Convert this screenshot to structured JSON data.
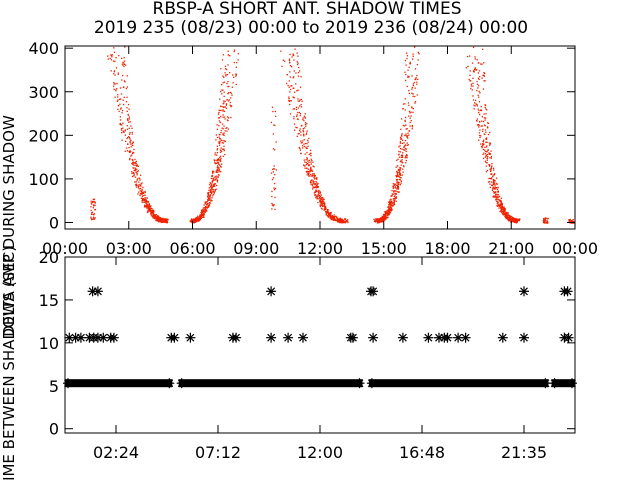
{
  "header": {
    "title": "RBSP-A SHORT ANT. SHADOW TIMES",
    "subtitle": "2019 235 (08/23) 00:00 to 2019 236 (08/24) 00:00"
  },
  "colors": {
    "top_points": "#ee2200",
    "axes": "#000000",
    "bottom_points": "#000000"
  },
  "chart_data": [
    {
      "type": "scatter",
      "ylabel": "DELTA AMP DURING SHADOW",
      "xlim_hours": [
        0,
        24
      ],
      "ylim": [
        -15,
        405
      ],
      "x_ticks": [
        "00:00",
        "03:00",
        "06:00",
        "09:00",
        "12:00",
        "15:00",
        "18:00",
        "21:00",
        "00:00"
      ],
      "y_ticks": [
        "0",
        "100",
        "200",
        "300",
        "400"
      ],
      "grid": false,
      "marker": "dot",
      "series": [
        {
          "name": "",
          "arcs": [
            {
              "start_h": 2.35,
              "end_h": 4.8,
              "y_start": 400,
              "y_end": 5
            },
            {
              "start_h": 5.9,
              "end_h": 7.8,
              "y_start": 5,
              "y_end": 400
            },
            {
              "start_h": 10.5,
              "end_h": 13.2,
              "y_start": 400,
              "y_end": 5
            },
            {
              "start_h": 14.6,
              "end_h": 16.4,
              "y_start": 5,
              "y_end": 400
            },
            {
              "start_h": 19.2,
              "end_h": 21.3,
              "y_start": 400,
              "y_end": 5
            }
          ],
          "clusters": [
            {
              "x_h": 1.3,
              "y_low": 8,
              "y_high": 55
            },
            {
              "x_h": 9.8,
              "y_low": 30,
              "y_high": 280
            },
            {
              "x_h": 22.6,
              "y_low": 0,
              "y_high": 12
            },
            {
              "x_h": 23.8,
              "y_low": 0,
              "y_high": 10
            }
          ]
        }
      ]
    },
    {
      "type": "scatter",
      "ylabel": "TIME BETWEEN SHADOWS (SEC)",
      "xlim_hours": [
        0,
        24
      ],
      "ylim": [
        -0.5,
        20
      ],
      "x_ticks": [
        "02:24",
        "07:12",
        "12:00",
        "16:48",
        "21:35"
      ],
      "y_ticks": [
        "0",
        "5",
        "10",
        "15",
        "20"
      ],
      "grid": false,
      "marker": "asterisk",
      "series": [
        {
          "name": "",
          "baseline_value": 5.3,
          "baseline_segments_h": [
            [
              0,
              5.05
            ],
            [
              5.35,
              14.0
            ],
            [
              14.3,
              22.75
            ],
            [
              22.9,
              24
            ]
          ],
          "points": [
            {
              "x_h": 0.2,
              "y": 10.6
            },
            {
              "x_h": 0.5,
              "y": 10.6
            },
            {
              "x_h": 0.75,
              "y": 10.6
            },
            {
              "x_h": 1.15,
              "y": 10.6
            },
            {
              "x_h": 1.35,
              "y": 10.6
            },
            {
              "x_h": 1.55,
              "y": 10.6
            },
            {
              "x_h": 1.8,
              "y": 10.6
            },
            {
              "x_h": 2.15,
              "y": 10.6
            },
            {
              "x_h": 2.3,
              "y": 10.6
            },
            {
              "x_h": 1.3,
              "y": 16.0
            },
            {
              "x_h": 1.55,
              "y": 16.0
            },
            {
              "x_h": 5.0,
              "y": 10.6
            },
            {
              "x_h": 5.15,
              "y": 10.6
            },
            {
              "x_h": 5.9,
              "y": 10.6
            },
            {
              "x_h": 7.9,
              "y": 10.6
            },
            {
              "x_h": 8.05,
              "y": 10.6
            },
            {
              "x_h": 9.7,
              "y": 10.6
            },
            {
              "x_h": 10.5,
              "y": 10.6
            },
            {
              "x_h": 11.2,
              "y": 10.6
            },
            {
              "x_h": 9.7,
              "y": 16.0
            },
            {
              "x_h": 13.45,
              "y": 10.6
            },
            {
              "x_h": 13.55,
              "y": 10.6
            },
            {
              "x_h": 14.5,
              "y": 10.6
            },
            {
              "x_h": 14.4,
              "y": 16.0
            },
            {
              "x_h": 14.5,
              "y": 16.0
            },
            {
              "x_h": 15.9,
              "y": 10.6
            },
            {
              "x_h": 17.1,
              "y": 10.6
            },
            {
              "x_h": 17.6,
              "y": 10.6
            },
            {
              "x_h": 17.85,
              "y": 10.6
            },
            {
              "x_h": 18.0,
              "y": 10.6
            },
            {
              "x_h": 18.5,
              "y": 10.6
            },
            {
              "x_h": 18.85,
              "y": 10.6
            },
            {
              "x_h": 20.6,
              "y": 10.6
            },
            {
              "x_h": 21.6,
              "y": 10.6
            },
            {
              "x_h": 21.6,
              "y": 16.0
            },
            {
              "x_h": 23.5,
              "y": 10.6
            },
            {
              "x_h": 23.7,
              "y": 10.6
            },
            {
              "x_h": 23.5,
              "y": 16.0
            },
            {
              "x_h": 23.65,
              "y": 16.0
            }
          ]
        }
      ]
    }
  ]
}
